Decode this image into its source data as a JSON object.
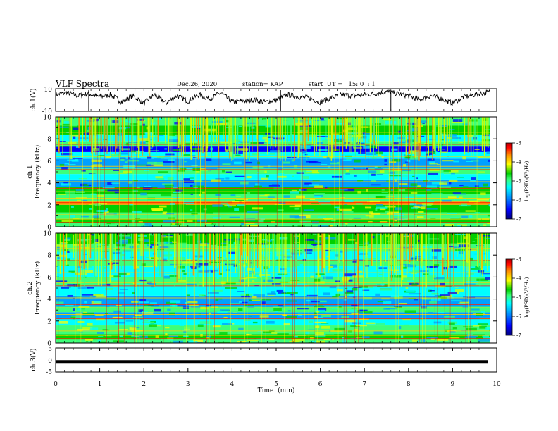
{
  "header": {
    "title": "VLF Spectra",
    "date": "Dec.26, 2020",
    "station": "station= KAP",
    "start_ut": "start  UT =   15: 0  : 1"
  },
  "chart_data": [
    {
      "type": "line",
      "panel": "ch1-waveform",
      "ylabel": "ch.1(V)",
      "ylim": [
        -10,
        10
      ],
      "yticks": [
        "10",
        "-10"
      ],
      "xlim": [
        0,
        10
      ],
      "x": [
        0,
        0.25,
        0.5,
        0.75,
        1.0,
        1.25,
        1.5,
        1.75,
        2.0,
        2.25,
        2.5,
        2.75,
        3.0,
        3.25,
        3.5,
        3.75,
        4.0,
        4.25,
        4.5,
        4.75,
        5.0,
        5.25,
        5.5,
        5.75,
        6.0,
        6.25,
        6.5,
        6.75,
        7.0,
        7.25,
        7.5,
        7.75,
        8.0,
        8.25,
        8.5,
        8.75,
        9.0,
        9.25,
        9.5,
        9.75
      ],
      "y": [
        5,
        7,
        4,
        6,
        3,
        5,
        -2,
        4,
        -3,
        5,
        -3,
        4,
        -1,
        5,
        1,
        7,
        -2,
        -1,
        0,
        -2,
        0,
        5,
        3,
        2,
        -2,
        2,
        5,
        4,
        5,
        6,
        8,
        6,
        4,
        0,
        4,
        1,
        -3,
        3,
        5,
        7
      ]
    },
    {
      "type": "heatmap",
      "panel": "ch1-spectrogram",
      "ylabel_top": "ch.1",
      "ylabel": "Frequency (kHz)",
      "yticks": [
        "0",
        "2",
        "4",
        "6",
        "8",
        "10"
      ],
      "ylim": [
        0,
        10
      ],
      "xlim": [
        0,
        10
      ],
      "colorbar": {
        "label": "log(PSD)(V²/Hz)",
        "ticks": [
          "-3",
          "-4",
          "-5",
          "-6",
          "-7"
        ],
        "range": [
          -7,
          -3
        ]
      }
    },
    {
      "type": "heatmap",
      "panel": "ch2-spectrogram",
      "ylabel_top": "ch.2",
      "ylabel": "Frequency (kHz)",
      "yticks": [
        "0",
        "2",
        "4",
        "6",
        "8",
        "10"
      ],
      "ylim": [
        0,
        10
      ],
      "xlim": [
        0,
        10
      ],
      "colorbar": {
        "label": "log(PSD)(V²/Hz)",
        "ticks": [
          "-3",
          "-4",
          "-5",
          "-6",
          "-7"
        ],
        "range": [
          -7,
          -3
        ]
      }
    },
    {
      "type": "line",
      "panel": "ch3-waveform",
      "ylabel": "ch.3(V)",
      "ylim": [
        -5,
        5
      ],
      "yticks": [
        "5",
        "0",
        "-5"
      ],
      "xlim": [
        0,
        9.8
      ],
      "x": [
        0,
        9.8
      ],
      "y": [
        -1,
        -1
      ],
      "xlabel": "Time  (min)",
      "xticks": [
        "0",
        "1",
        "2",
        "3",
        "4",
        "5",
        "6",
        "7",
        "8",
        "9",
        "10"
      ]
    }
  ],
  "colors": {
    "colormap": [
      "#00007a",
      "#0000ff",
      "#00a0ff",
      "#00ffff",
      "#3cff7a",
      "#00d000",
      "#d8ff00",
      "#ffff00",
      "#ff9000",
      "#ff0000",
      "#b00000"
    ]
  }
}
